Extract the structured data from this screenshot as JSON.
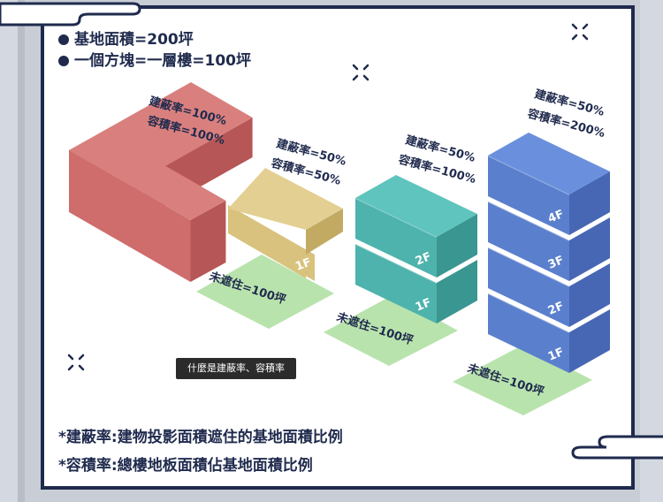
{
  "headings": [
    "基地面積=200坪",
    "一個方塊=一層樓=100坪"
  ],
  "examples": [
    {
      "coverage_label": "建蔽率=100%",
      "far_label": "容積率=100%",
      "floors": [],
      "open_label": ""
    },
    {
      "coverage_label": "建蔽率=50%",
      "far_label": "容積率=50%",
      "floors": [
        "1F"
      ],
      "open_label": "未遮住=100坪"
    },
    {
      "coverage_label": "建蔽率=50%",
      "far_label": "容積率=100%",
      "floors": [
        "1F",
        "2F"
      ],
      "open_label": "未遮住=100坪"
    },
    {
      "coverage_label": "建蔽率=50%",
      "far_label": "容積率=200%",
      "floors": [
        "1F",
        "2F",
        "3F",
        "4F"
      ],
      "open_label": "未遮住=100坪"
    }
  ],
  "footnotes": [
    "*建蔽率:建物投影面積遮住的基地面積比例",
    "*容積率:總樓地板面積佔基地面積比例"
  ],
  "tooltip": "什麼是建蔽率、容積率",
  "colors": {
    "navy": "#1f2a4d",
    "red_front": "#cf6c6c",
    "red_top": "#d9807e",
    "red_side": "#b65656",
    "yellow_front": "#d8c27e",
    "yellow_top": "#e3cf92",
    "yellow_side": "#c2aa62",
    "teal_front": "#4db3ac",
    "teal_top": "#5fc4bd",
    "teal_side": "#3a9690",
    "blue_front": "#5a7fcd",
    "blue_top": "#6a90dd",
    "blue_side": "#4767b4",
    "green": "#b9e3ad"
  }
}
